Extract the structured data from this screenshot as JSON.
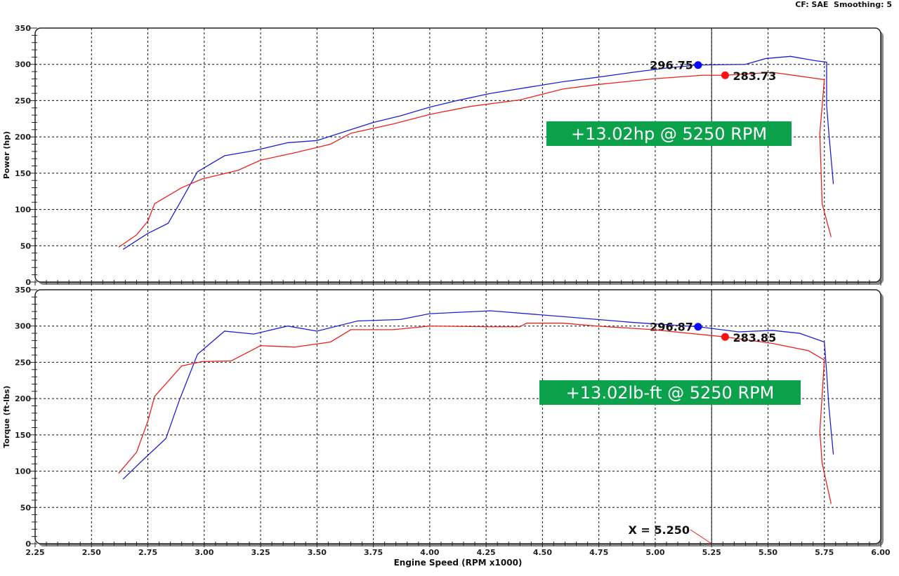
{
  "header": {
    "correction": "CF: SAE",
    "smoothing": "Smoothing: 5"
  },
  "chart_data": [
    {
      "type": "line",
      "ylabel": "Power (hp)",
      "ylim": [
        0,
        350
      ],
      "yticks": [
        "0",
        "50",
        "100",
        "150",
        "200",
        "250",
        "300",
        "350"
      ],
      "xlim": [
        2.25,
        6.0
      ],
      "grid": true,
      "cursor_x": 5.25,
      "annotation": "+13.02hp @ 5250 RPM",
      "annotation_color": "#0ca24b",
      "series": [
        {
          "color": "#1f1fd6",
          "marker_label": "296.75",
          "marker_x": 5.19,
          "x": [
            2.64,
            2.75,
            2.84,
            2.89,
            2.97,
            3.09,
            3.22,
            3.37,
            3.5,
            3.62,
            3.75,
            3.87,
            4.0,
            4.12,
            4.27,
            4.43,
            4.59,
            4.74,
            4.9,
            5.05,
            5.19,
            5.4,
            5.49,
            5.6,
            5.71,
            5.76,
            5.76,
            5.77,
            5.79
          ],
          "y": [
            45,
            67,
            81,
            108,
            152,
            174,
            181,
            192,
            195,
            207,
            220,
            229,
            241,
            250,
            260,
            268,
            276,
            282,
            289,
            295,
            299,
            300,
            308,
            311,
            305,
            303,
            244,
            205,
            135
          ]
        },
        {
          "color": "#e8231f",
          "marker_label": "283.73",
          "marker_x": 5.31,
          "x": [
            2.62,
            2.7,
            2.75,
            2.78,
            2.9,
            2.99,
            3.15,
            3.25,
            3.4,
            3.56,
            3.65,
            3.84,
            4.0,
            4.18,
            4.4,
            4.49,
            4.59,
            4.74,
            4.99,
            5.21,
            5.31,
            5.52,
            5.68,
            5.75,
            5.73,
            5.74,
            5.78
          ],
          "y": [
            48,
            65,
            84,
            108,
            130,
            142,
            154,
            168,
            178,
            190,
            205,
            218,
            231,
            242,
            251,
            258,
            266,
            272,
            280,
            285,
            285,
            289,
            282,
            279,
            205,
            108,
            62
          ]
        }
      ]
    },
    {
      "type": "line",
      "ylabel": "Torque (ft-lbs)",
      "xlabel": "Engine Speed (RPM x1000)",
      "ylim": [
        0,
        350
      ],
      "yticks": [
        "0",
        "50",
        "100",
        "150",
        "200",
        "250",
        "300",
        "350"
      ],
      "xlim": [
        2.25,
        6.0
      ],
      "xticks": [
        "2.25",
        "2.50",
        "2.75",
        "3.00",
        "3.25",
        "3.50",
        "3.75",
        "4.00",
        "4.25",
        "4.50",
        "4.75",
        "5.00",
        "5.25",
        "5.50",
        "5.75",
        "6.00"
      ],
      "grid": true,
      "cursor_x": 5.25,
      "cursor_label": "X = 5.250",
      "annotation": "+13.02lb-ft @ 5250 RPM",
      "annotation_color": "#0ca24b",
      "series": [
        {
          "color": "#1f1fd6",
          "marker_label": "296.87",
          "marker_x": 5.19,
          "x": [
            2.64,
            2.73,
            2.83,
            2.89,
            2.97,
            3.09,
            3.22,
            3.37,
            3.5,
            3.68,
            3.87,
            4.0,
            4.27,
            4.59,
            4.9,
            5.19,
            5.37,
            5.52,
            5.64,
            5.75,
            5.76,
            5.77,
            5.79
          ],
          "y": [
            89,
            116,
            145,
            198,
            261,
            293,
            289,
            300,
            293,
            307,
            309,
            317,
            321,
            313,
            305,
            299,
            292,
            294,
            290,
            278,
            237,
            189,
            123
          ]
        },
        {
          "color": "#e8231f",
          "marker_label": "283.85",
          "marker_x": 5.31,
          "x": [
            2.62,
            2.7,
            2.75,
            2.78,
            2.9,
            2.99,
            3.12,
            3.25,
            3.4,
            3.56,
            3.65,
            3.84,
            4.0,
            4.27,
            4.4,
            4.43,
            4.59,
            4.74,
            4.99,
            5.31,
            5.52,
            5.68,
            5.75,
            5.73,
            5.74,
            5.78
          ],
          "y": [
            97,
            126,
            169,
            203,
            245,
            251,
            252,
            273,
            271,
            278,
            295,
            295,
            300,
            299,
            299,
            304,
            304,
            300,
            295,
            285,
            276,
            266,
            253,
            155,
            111,
            55
          ]
        }
      ]
    }
  ]
}
